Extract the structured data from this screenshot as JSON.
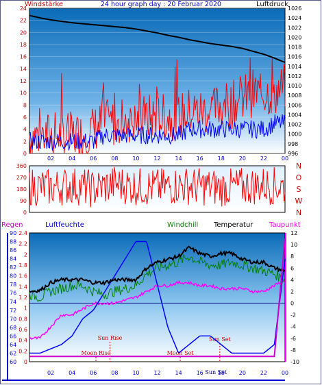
{
  "title": "24 hour graph day : 20 Februar 2020",
  "colors": {
    "wind_avg": "#0000ff",
    "wind_gust": "#ff0000",
    "pressure": "#000000",
    "direction": "#ff0000",
    "humidity": "#0000ff",
    "windchill": "#008000",
    "temperature": "#000000",
    "dewpoint": "#ff00ff",
    "rain": "#cc00cc",
    "labels_red": "#cc0000",
    "labels_blue": "#0000cc",
    "sky_top": "#0a6bb8",
    "sky_bottom": "#ffffff"
  },
  "x_tick_labels": [
    "02",
    "04",
    "06",
    "08",
    "10",
    "12",
    "14",
    "16",
    "18",
    "20",
    "22",
    "00"
  ],
  "chart_data": [
    {
      "type": "line",
      "name": "wind-pressure",
      "x": [
        "00:00",
        "01:00",
        "02:00",
        "03:00",
        "04:00",
        "05:00",
        "06:00",
        "07:00",
        "08:00",
        "09:00",
        "10:00",
        "11:00",
        "12:00",
        "13:00",
        "14:00",
        "15:00",
        "16:00",
        "17:00",
        "18:00",
        "19:00",
        "20:00",
        "21:00",
        "22:00",
        "23:00",
        "24:00"
      ],
      "left_axis": {
        "label": "Windstärke",
        "ticks": [
          "0",
          "2",
          "4",
          "6",
          "8",
          "10",
          "12",
          "14",
          "16",
          "18",
          "20",
          "22",
          "24"
        ],
        "ylim": [
          0,
          24
        ]
      },
      "right_axis": {
        "label": "Luftdruck",
        "ticks": [
          "996",
          "998",
          "1000",
          "1002",
          "1004",
          "1006",
          "1008",
          "1010",
          "1012",
          "1014",
          "1016",
          "1018",
          "1020",
          "1022",
          "1024",
          "1026"
        ],
        "ylim": [
          996,
          1026
        ]
      },
      "series": [
        {
          "values": [
            1024.5,
            1024.0,
            1023.6,
            1023.3,
            1023.0,
            1022.8,
            1022.6,
            1022.4,
            1022.2,
            1022.0,
            1021.7,
            1021.3,
            1020.9,
            1020.4,
            1020.0,
            1019.5,
            1019.1,
            1018.7,
            1018.4,
            1018.1,
            1017.7,
            1017.1,
            1016.5,
            1015.7,
            1014.8
          ]
        },
        {
          "values": [
            3,
            3,
            3,
            3,
            3,
            3,
            4,
            5,
            5,
            6,
            5,
            6,
            6,
            6,
            6,
            7,
            7,
            7,
            8,
            8,
            9,
            10,
            10,
            10,
            11
          ]
        },
        {
          "values": [
            2,
            2,
            2,
            2,
            2,
            2,
            2,
            3,
            3,
            3,
            3,
            3,
            3,
            3,
            3,
            4,
            4,
            4,
            4,
            4,
            4,
            4,
            4,
            5,
            5
          ]
        }
      ]
    },
    {
      "type": "line",
      "name": "wind-direction",
      "x": [
        "00:00",
        "02:00",
        "04:00",
        "06:00",
        "08:00",
        "10:00",
        "12:00",
        "14:00",
        "16:00",
        "18:00",
        "20:00",
        "22:00",
        "24:00"
      ],
      "left_axis": {
        "ticks": [
          "0",
          "90",
          "180",
          "270",
          "360"
        ],
        "ylim": [
          0,
          360
        ]
      },
      "right_axis": {
        "ticks": [
          "N",
          "W",
          "S",
          "O",
          "N"
        ],
        "ylim": [
          0,
          360
        ]
      },
      "series": [
        {
          "values": [
            200,
            190,
            210,
            180,
            220,
            200,
            190,
            210,
            200,
            190,
            200,
            210,
            200
          ]
        }
      ]
    },
    {
      "type": "line",
      "name": "temperature-humidity-rain",
      "x": [
        "00:00",
        "01:00",
        "02:00",
        "03:00",
        "04:00",
        "05:00",
        "06:00",
        "07:00",
        "08:00",
        "09:00",
        "10:00",
        "11:00",
        "12:00",
        "13:00",
        "14:00",
        "15:00",
        "16:00",
        "17:00",
        "18:00",
        "19:00",
        "20:00",
        "21:00",
        "22:00",
        "23:00",
        "24:00"
      ],
      "legend": [
        "Regen",
        "Luftfeuchte",
        "Windchill",
        "Temperatur",
        "Taupunkt"
      ],
      "rain_axis": {
        "ticks": [
          "0",
          "0.2",
          "0.4",
          "0.6",
          "0.8",
          "1",
          "1.2",
          "1.4",
          "1.6",
          "1.8",
          "2",
          "2.2",
          "2.4"
        ],
        "ylim": [
          0,
          2.4
        ]
      },
      "humidity_axis": {
        "ticks": [
          "60",
          "62",
          "64",
          "66",
          "68",
          "70",
          "72",
          "74",
          "76",
          "78",
          "80",
          "82",
          "84",
          "86",
          "88",
          "90"
        ],
        "ylim": [
          60,
          90
        ]
      },
      "temperature_axis": {
        "ticks": [
          "-10",
          "-8",
          "-6",
          "-4",
          "-2",
          "0",
          "2",
          "4",
          "6",
          "8",
          "10",
          "12"
        ],
        "ylim": [
          -10,
          12
        ]
      },
      "series": [
        {
          "values": [
            0.1,
            0.1,
            0.1,
            0.1,
            0.1,
            0.1,
            0.1,
            0.1,
            0.1,
            0.1,
            0.1,
            0.1,
            0.1,
            0.1,
            0.1,
            0.1,
            0.1,
            0.1,
            0.1,
            0.1,
            0.1,
            0.1,
            0.1,
            0.1,
            2.3
          ]
        },
        {
          "values": [
            62,
            62,
            63,
            64,
            66,
            70,
            72,
            76,
            80,
            84,
            88,
            88,
            78,
            68,
            62,
            64,
            66,
            66,
            64,
            62,
            62,
            62,
            62,
            64,
            84
          ]
        },
        {
          "values": [
            1.5,
            1.0,
            2.0,
            2.5,
            3.0,
            3.0,
            2.0,
            1.5,
            2.0,
            2.5,
            3.0,
            5.0,
            6.0,
            6.5,
            7.0,
            8.0,
            7.0,
            6.5,
            6.5,
            7.0,
            6.5,
            6.0,
            5.5,
            5.0,
            4.0
          ]
        },
        {
          "values": [
            2.0,
            2.2,
            3.5,
            4.0,
            4.0,
            4.0,
            3.5,
            3.5,
            4.0,
            4.0,
            4.0,
            6.0,
            7.0,
            7.5,
            8.0,
            9.5,
            8.5,
            8.0,
            8.5,
            8.5,
            7.5,
            7.0,
            7.0,
            6.0,
            5.5
          ]
        },
        {
          "values": [
            -6,
            -6,
            -4,
            -2,
            -2,
            -1,
            0,
            0,
            0,
            0.5,
            1,
            2,
            3,
            3,
            3.5,
            3.5,
            3,
            3,
            2.5,
            2.5,
            2.5,
            2,
            2,
            3,
            4
          ]
        }
      ]
    }
  ],
  "astronomy": [
    {
      "label": "Sun Rise"
    },
    {
      "label": "Moon Rise"
    },
    {
      "label": "Moon Set"
    },
    {
      "label": "Sun Set"
    },
    {
      "label": "Sun Set"
    }
  ]
}
